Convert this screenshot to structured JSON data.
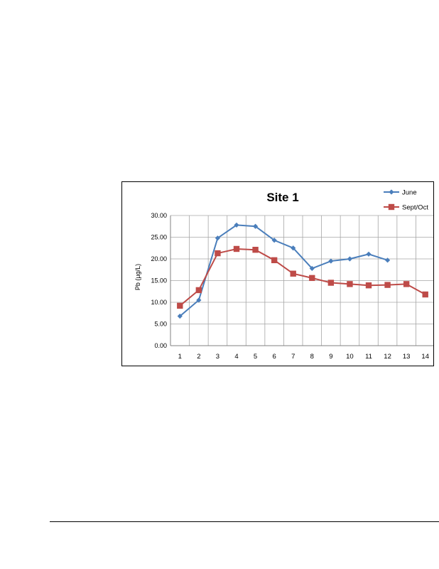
{
  "chart_data": {
    "type": "line",
    "title": "Site 1",
    "xlabel": "",
    "ylabel": "Pb (µg/L)",
    "x": [
      1,
      2,
      3,
      4,
      5,
      6,
      7,
      8,
      9,
      10,
      11,
      12,
      13,
      14
    ],
    "ylim": [
      0,
      30
    ],
    "yticks": [
      "0.00",
      "5.00",
      "10.00",
      "15.00",
      "20.00",
      "25.00",
      "30.00"
    ],
    "grid": true,
    "legend_position": "top-right",
    "series": [
      {
        "name": "June",
        "color": "#4a7ebb",
        "marker": "diamond",
        "x": [
          1,
          2,
          3,
          4,
          5,
          6,
          7,
          8,
          9,
          10,
          11,
          12
        ],
        "values": [
          6.8,
          10.5,
          24.8,
          27.8,
          27.5,
          24.3,
          22.5,
          17.8,
          19.5,
          20.0,
          21.1,
          19.7
        ]
      },
      {
        "name": "Sept/Oct",
        "color": "#be4b48",
        "marker": "square",
        "x": [
          1,
          2,
          3,
          4,
          5,
          6,
          7,
          8,
          9,
          10,
          11,
          12,
          13,
          14
        ],
        "values": [
          9.2,
          12.8,
          21.3,
          22.3,
          22.1,
          19.7,
          16.6,
          15.6,
          14.5,
          14.2,
          13.9,
          14.0,
          14.2,
          11.8
        ]
      }
    ]
  }
}
